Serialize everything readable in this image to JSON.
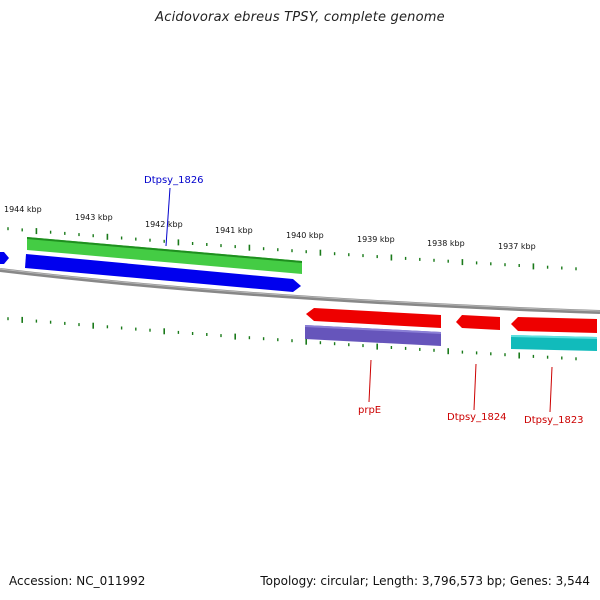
{
  "title": "Acidovorax ebreus TPSY, complete genome",
  "footer": {
    "accession": "Accession: NC_011992",
    "summary": "Topology: circular; Length: 3,796,573 bp; Genes: 3,544"
  },
  "ruler_labels": [
    "1944 kbp",
    "1943 kbp",
    "1942 kbp",
    "1941 kbp",
    "1940 kbp",
    "1939 kbp",
    "1938 kbp",
    "1937 kbp"
  ],
  "gene_labels": [
    {
      "text": "Dtpsy_1826",
      "color": "#0000cc"
    },
    {
      "text": "prpE",
      "color": "#cc0000"
    },
    {
      "text": "Dtpsy_1824",
      "color": "#cc0000"
    },
    {
      "text": "Dtpsy_1823",
      "color": "#cc0000"
    }
  ],
  "colors": {
    "backbone": "#888888",
    "tick": "#1a7a1a",
    "cds_blue": "#0000ee",
    "cds_green": "#44cc44",
    "cds_red": "#ee0000",
    "cds_purple": "#6655bb",
    "cds_cyan": "#11bbbb"
  }
}
